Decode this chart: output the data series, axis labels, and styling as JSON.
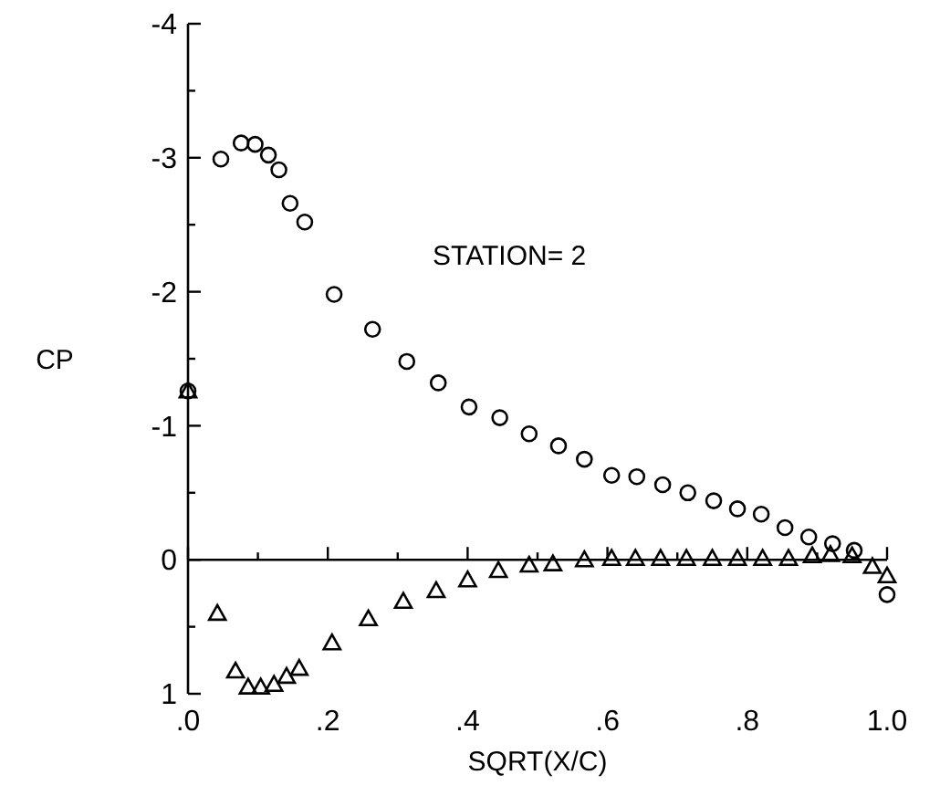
{
  "chart_data": {
    "type": "scatter",
    "xlabel": "SQRT(X/C)",
    "ylabel": "CP",
    "annotations": [
      "STATION= 2"
    ],
    "xlim": [
      0,
      1.0
    ],
    "ylim": [
      1,
      -4
    ],
    "xticks": [
      {
        "value": 0,
        "label": ".0"
      },
      {
        "value": 0.1,
        "label": null
      },
      {
        "value": 0.2,
        "label": ".2"
      },
      {
        "value": 0.3,
        "label": null
      },
      {
        "value": 0.4,
        "label": ".4"
      },
      {
        "value": 0.5,
        "label": null
      },
      {
        "value": 0.6,
        "label": ".6"
      },
      {
        "value": 0.7,
        "label": null
      },
      {
        "value": 0.8,
        "label": ".8"
      },
      {
        "value": 0.9,
        "label": null
      },
      {
        "value": 1.0,
        "label": "1.0"
      }
    ],
    "yticks": [
      1,
      {
        "value": 0.5,
        "label": null
      },
      0,
      {
        "value": -0.5,
        "label": null
      },
      -1,
      {
        "value": -1.5,
        "label": null
      },
      -2,
      {
        "value": -2.5,
        "label": null
      },
      -3,
      {
        "value": -3.5,
        "label": null
      },
      -4
    ],
    "ref_lines": [
      {
        "axis": "y",
        "value": 0
      }
    ],
    "series": [
      {
        "color": "#000000",
        "marker": "circle",
        "x": [
          0,
          0.047,
          0.076,
          0.096,
          0.115,
          0.13,
          0.146,
          0.167,
          0.209,
          0.264,
          0.313,
          0.358,
          0.402,
          0.446,
          0.488,
          0.53,
          0.567,
          0.606,
          0.642,
          0.679,
          0.715,
          0.752,
          0.786,
          0.82,
          0.854,
          0.888,
          0.922,
          0.953,
          1.0
        ],
        "values": [
          -1.26,
          -2.99,
          -3.11,
          -3.1,
          -3.02,
          -2.91,
          -2.66,
          -2.52,
          -1.98,
          -1.72,
          -1.48,
          -1.32,
          -1.14,
          -1.06,
          -0.94,
          -0.85,
          -0.75,
          -0.63,
          -0.62,
          -0.56,
          -0.5,
          -0.44,
          -0.38,
          -0.34,
          -0.24,
          -0.17,
          -0.12,
          -0.07,
          0.26
        ]
      },
      {
        "color": "#000000",
        "marker": "triangle",
        "x": [
          0,
          0.042,
          0.068,
          0.086,
          0.104,
          0.123,
          0.141,
          0.159,
          0.206,
          0.258,
          0.308,
          0.355,
          0.4,
          0.444,
          0.488,
          0.522,
          0.567,
          0.606,
          0.64,
          0.676,
          0.713,
          0.75,
          0.786,
          0.822,
          0.859,
          0.893,
          0.919,
          0.95,
          0.979,
          1.0
        ],
        "values": [
          -1.26,
          0.4,
          0.83,
          0.95,
          0.95,
          0.93,
          0.87,
          0.81,
          0.62,
          0.44,
          0.31,
          0.23,
          0.15,
          0.08,
          0.04,
          0.03,
          0.0,
          -0.01,
          -0.01,
          -0.01,
          -0.01,
          -0.01,
          -0.01,
          -0.01,
          -0.01,
          -0.03,
          -0.04,
          -0.03,
          0.05,
          0.12
        ]
      }
    ]
  }
}
